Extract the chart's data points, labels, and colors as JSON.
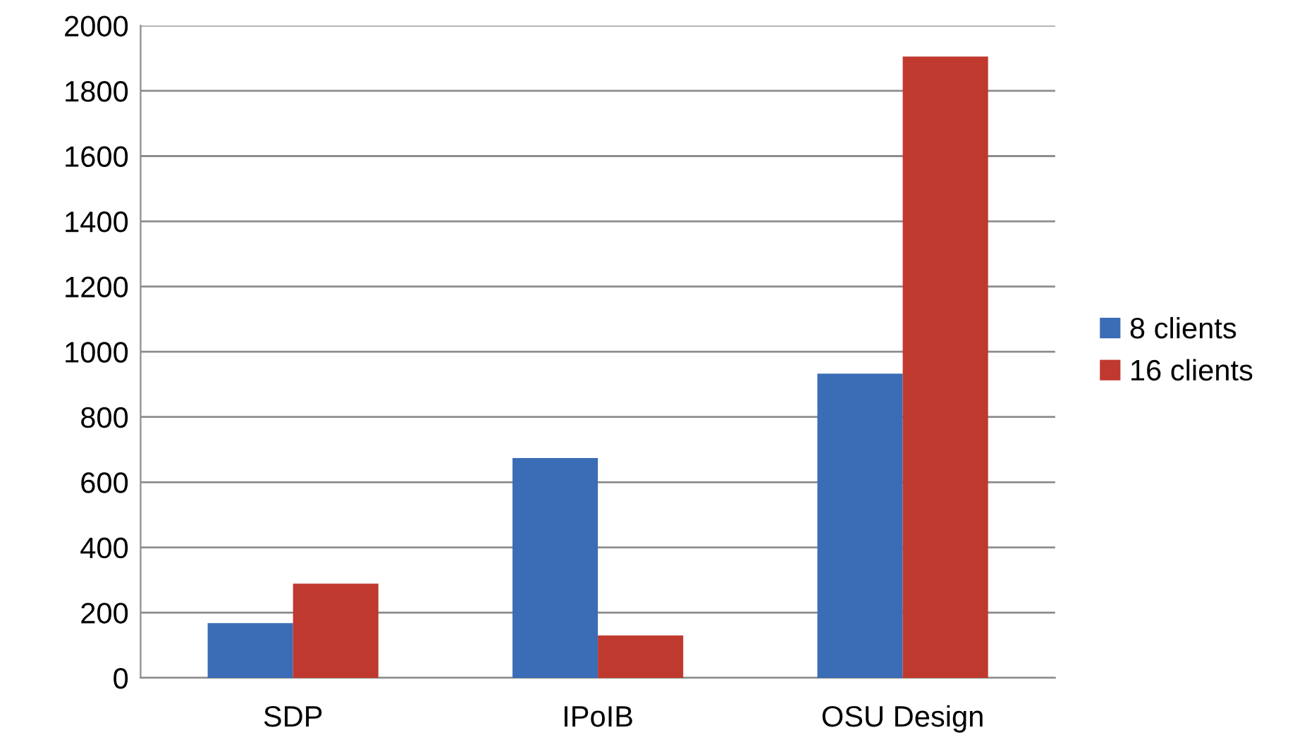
{
  "chart_data": {
    "type": "bar",
    "categories": [
      "SDP",
      "IPoIB",
      "OSU Design"
    ],
    "series": [
      {
        "name": "8 clients",
        "color": "#3a6db5",
        "values": [
          168,
          674,
          933
        ]
      },
      {
        "name": "16 clients",
        "color": "#c0392f",
        "values": [
          289,
          130,
          1905
        ]
      }
    ],
    "ylim": [
      0,
      2000
    ],
    "yticks": [
      0,
      200,
      400,
      600,
      800,
      1000,
      1200,
      1400,
      1600,
      1800,
      2000
    ],
    "grid": "y",
    "legend": "right"
  }
}
